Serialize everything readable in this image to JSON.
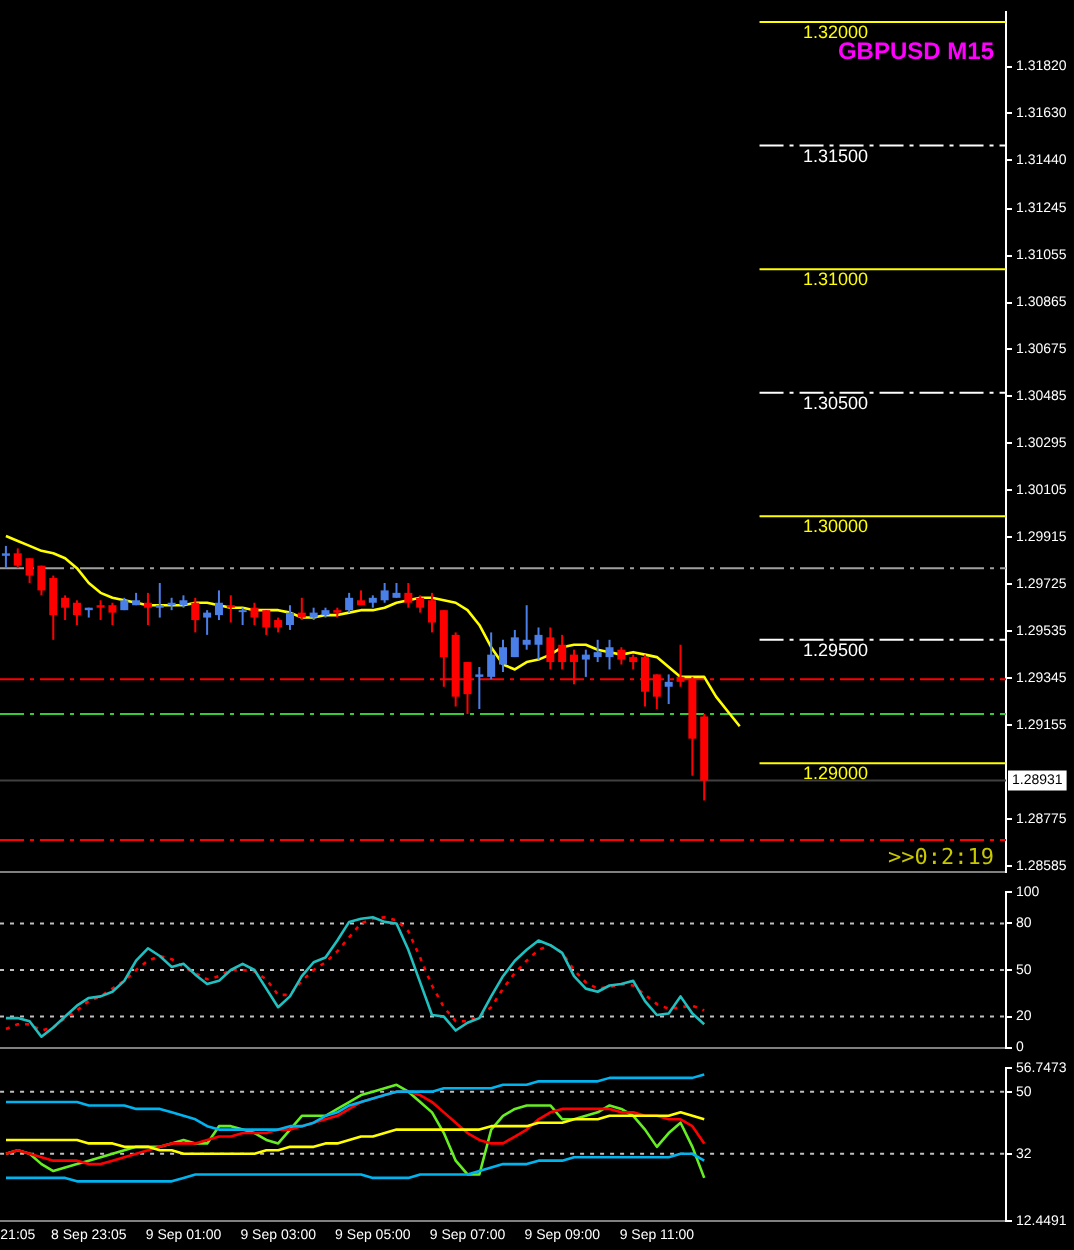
{
  "chart_data": [
    {
      "type": "candlestick",
      "title": "GBPUSD M15",
      "tick_labels": "y",
      "categories": [
        null,
        null,
        null,
        null,
        null,
        null,
        null,
        null,
        null,
        null,
        null,
        null,
        null,
        null,
        null,
        null,
        null,
        null,
        null,
        null,
        null,
        null,
        null,
        null,
        null,
        null,
        null,
        null,
        null,
        null,
        null,
        null,
        null,
        null,
        null,
        null,
        null,
        null,
        null,
        null,
        null,
        null,
        null,
        null,
        null,
        null,
        null,
        null,
        null,
        null,
        null,
        null,
        null,
        null,
        null,
        null,
        null,
        null,
        null,
        null,
        null,
        null,
        null,
        null,
        null,
        null,
        null,
        null,
        null,
        null,
        null,
        null,
        null,
        null,
        null,
        null,
        null,
        null,
        null,
        null,
        null,
        null,
        null,
        null,
        null
      ],
      "ohlc": [
        [
          1.2984,
          1.2988,
          1.2979,
          1.2985
        ],
        [
          1.2985,
          1.2987,
          1.2979,
          1.298
        ],
        [
          1.2983,
          1.2983,
          1.2973,
          1.2976
        ],
        [
          1.298,
          1.298,
          1.2968,
          1.297
        ],
        [
          1.2975,
          1.2976,
          1.295,
          1.296
        ],
        [
          1.2967,
          1.2968,
          1.2958,
          1.2963
        ],
        [
          1.2965,
          1.2966,
          1.2956,
          1.296
        ],
        [
          1.2962,
          1.2963,
          1.2959,
          1.2963
        ],
        [
          1.2964,
          1.2966,
          1.2958,
          1.2963
        ],
        [
          1.2964,
          1.2965,
          1.2956,
          1.2961
        ],
        [
          1.2962,
          1.2967,
          1.2962,
          1.2966
        ],
        [
          1.2964,
          1.2969,
          1.2964,
          1.2966
        ],
        [
          1.2965,
          1.2969,
          1.2956,
          1.2963
        ],
        [
          1.2963,
          1.2973,
          1.2959,
          1.2964
        ],
        [
          1.2964,
          1.2967,
          1.2962,
          1.2965
        ],
        [
          1.2964,
          1.2968,
          1.2963,
          1.2966
        ],
        [
          1.2965,
          1.2967,
          1.2953,
          1.2958
        ],
        [
          1.2959,
          1.2962,
          1.2952,
          1.2961
        ],
        [
          1.296,
          1.297,
          1.2958,
          1.2965
        ],
        [
          1.2964,
          1.2968,
          1.2957,
          1.2963
        ],
        [
          1.2962,
          1.2963,
          1.2956,
          1.2962
        ],
        [
          1.2963,
          1.2965,
          1.2956,
          1.2959
        ],
        [
          1.2962,
          1.2962,
          1.2952,
          1.2955
        ],
        [
          1.2958,
          1.2959,
          1.2953,
          1.2955
        ],
        [
          1.2956,
          1.2964,
          1.2954,
          1.2961
        ],
        [
          1.2961,
          1.2967,
          1.2958,
          1.2959
        ],
        [
          1.2959,
          1.2963,
          1.2958,
          1.2961
        ],
        [
          1.296,
          1.2963,
          1.2959,
          1.2962
        ],
        [
          1.2962,
          1.2963,
          1.2959,
          1.2961
        ],
        [
          1.2962,
          1.2969,
          1.2961,
          1.2967
        ],
        [
          1.2966,
          1.297,
          1.2964,
          1.2964
        ],
        [
          1.2965,
          1.2968,
          1.2963,
          1.2967
        ],
        [
          1.2966,
          1.2973,
          1.2965,
          1.297
        ],
        [
          1.2967,
          1.2973,
          1.2967,
          1.2969
        ],
        [
          1.2969,
          1.2973,
          1.2963,
          1.2965
        ],
        [
          1.2967,
          1.2968,
          1.2961,
          1.2963
        ],
        [
          1.2966,
          1.2969,
          1.2953,
          1.2957
        ],
        [
          1.2962,
          1.2962,
          1.2931,
          1.2943
        ],
        [
          1.2952,
          1.2953,
          1.2923,
          1.2927
        ],
        [
          1.2941,
          1.2941,
          1.292,
          1.2928
        ],
        [
          1.2935,
          1.2939,
          1.2922,
          1.2936
        ],
        [
          1.2935,
          1.2953,
          1.2934,
          1.2944
        ],
        [
          1.294,
          1.295,
          1.2937,
          1.2947
        ],
        [
          1.2943,
          1.2954,
          1.2943,
          1.2951
        ],
        [
          1.2948,
          1.2964,
          1.2946,
          1.295
        ],
        [
          1.2948,
          1.2955,
          1.2942,
          1.2952
        ],
        [
          1.2951,
          1.2955,
          1.2938,
          1.2941
        ],
        [
          1.2948,
          1.2952,
          1.2938,
          1.2941
        ],
        [
          1.2944,
          1.2946,
          1.2932,
          1.2941
        ],
        [
          1.2942,
          1.2946,
          1.2935,
          1.2944
        ],
        [
          1.2943,
          1.295,
          1.2941,
          1.2945
        ],
        [
          1.2943,
          1.295,
          1.2938,
          1.2947
        ],
        [
          1.2946,
          1.2947,
          1.294,
          1.2942
        ],
        [
          1.2943,
          1.2944,
          1.2938,
          1.2941
        ],
        [
          1.2943,
          1.2944,
          1.2923,
          1.2929
        ],
        [
          1.2936,
          1.2936,
          1.2922,
          1.2927
        ],
        [
          1.2931,
          1.2936,
          1.2924,
          1.2933
        ],
        [
          1.2935,
          1.2948,
          1.2931,
          1.2933
        ],
        [
          1.2934,
          1.2935,
          1.2895,
          1.291
        ],
        [
          1.2919,
          1.292,
          1.2885,
          1.2893
        ],
        null,
        null,
        null,
        null,
        null,
        null,
        null,
        null,
        null,
        null,
        null,
        null,
        null,
        null,
        null,
        null,
        null,
        null,
        null,
        null,
        null,
        null,
        null,
        null,
        null
      ],
      "colors": [
        "#4a7fe8",
        "#ff0000",
        "#ff0000",
        "#ff0000",
        "#ff0000",
        "#ff0000",
        "#ff0000",
        "#4a7fe8",
        "#ff0000",
        "#ff0000",
        "#4a7fe8",
        "#4a7fe8",
        "#ff0000",
        "#4a7fe8",
        "#4a7fe8",
        "#4a7fe8",
        "#ff0000",
        "#4a7fe8",
        "#4a7fe8",
        "#ff0000",
        "#4a7fe8",
        "#ff0000",
        "#ff0000",
        "#ff0000",
        "#4a7fe8",
        "#ff0000",
        "#4a7fe8",
        "#4a7fe8",
        "#ff0000",
        "#4a7fe8",
        "#ff0000",
        "#4a7fe8",
        "#4a7fe8",
        "#4a7fe8",
        "#ff0000",
        "#ff0000",
        "#ff0000",
        "#ff0000",
        "#ff0000",
        "#ff0000",
        "#4a7fe8",
        "#4a7fe8",
        "#4a7fe8",
        "#4a7fe8",
        "#4a7fe8",
        "#4a7fe8",
        "#ff0000",
        "#ff0000",
        "#ff0000",
        "#4a7fe8",
        "#4a7fe8",
        "#4a7fe8",
        "#ff0000",
        "#ff0000",
        "#ff0000",
        "#ff0000",
        "#4a7fe8",
        "#ff0000",
        "#ff0000",
        "#ff0000",
        null,
        null,
        null,
        null,
        null,
        null,
        null,
        null,
        null,
        null,
        null,
        null,
        null,
        null,
        null,
        null,
        null,
        null,
        null,
        null,
        null,
        null,
        null,
        null,
        null
      ],
      "series": [
        {
          "type": "line",
          "color": "#ffff00",
          "values": [
            1.2992,
            1.299,
            1.2988,
            1.2986,
            1.2985,
            1.2983,
            1.2979,
            1.2973,
            1.2969,
            1.2967,
            1.2966,
            1.2965,
            1.2964,
            1.2964,
            1.2964,
            1.2964,
            1.2965,
            1.2965,
            1.2964,
            1.2963,
            1.2963,
            1.2962,
            1.2962,
            1.2962,
            1.2961,
            1.2959,
            1.2959,
            1.296,
            1.296,
            1.2961,
            1.2962,
            1.2962,
            1.2963,
            1.2965,
            1.2966,
            1.2967,
            1.2967,
            1.2966,
            1.2965,
            1.2962,
            1.2956,
            1.2947,
            1.294,
            1.2938,
            1.2941,
            1.2942,
            1.2944,
            1.2947,
            1.2948,
            1.2948,
            1.2946,
            1.2945,
            1.2944,
            1.2945,
            1.2944,
            1.2943,
            1.2939,
            1.2935,
            1.2935,
            1.2935,
            1.2927,
            1.2921,
            1.2915,
            null,
            null,
            null,
            null,
            null,
            null,
            null,
            null,
            null,
            null,
            null,
            null,
            null,
            null,
            null,
            null,
            null,
            null,
            null,
            null,
            null,
            null
          ]
        }
      ],
      "ylim": [
        1.28562,
        1.32039
      ],
      "yticks": [
        {
          "value": 1.3182,
          "label": "1.31820"
        },
        {
          "value": 1.3163,
          "label": "1.31630"
        },
        {
          "value": 1.3144,
          "label": "1.31440"
        },
        {
          "value": 1.31245,
          "label": "1.31245"
        },
        {
          "value": 1.31055,
          "label": "1.31055"
        },
        {
          "value": 1.30865,
          "label": "1.30865"
        },
        {
          "value": 1.30675,
          "label": "1.30675"
        },
        {
          "value": 1.30485,
          "label": "1.30485"
        },
        {
          "value": 1.30295,
          "label": "1.30295"
        },
        {
          "value": 1.30105,
          "label": "1.30105"
        },
        {
          "value": 1.29915,
          "label": "1.29915"
        },
        {
          "value": 1.29725,
          "label": "1.29725"
        },
        {
          "value": 1.29535,
          "label": "1.29535"
        },
        {
          "value": 1.29345,
          "label": "1.29345"
        },
        {
          "value": 1.29155,
          "label": "1.29155"
        },
        {
          "value": 1.28775,
          "label": "1.28775"
        },
        {
          "value": 1.28585,
          "label": "1.28585"
        }
      ],
      "ref_lines": [
        {
          "axis": "y",
          "value": 1.32,
          "label": "1.32000",
          "color": "#ffff00",
          "line_style": "solid"
        },
        {
          "axis": "y",
          "value": 1.315,
          "label": "1.31500",
          "color": "#ffffff",
          "line_style": "dashed"
        },
        {
          "axis": "y",
          "value": 1.31,
          "label": "1.31000",
          "color": "#ffff00",
          "line_style": "solid"
        },
        {
          "axis": "y",
          "value": 1.305,
          "label": "1.30500",
          "color": "#ffffff",
          "line_style": "dashed"
        },
        {
          "axis": "y",
          "value": 1.3,
          "label": "1.30000",
          "color": "#ffff00",
          "line_style": "solid"
        },
        {
          "axis": "y",
          "value": 1.295,
          "label": "1.29500",
          "color": "#ffffff",
          "line_style": "dashed"
        },
        {
          "axis": "y",
          "value": 1.29,
          "label": "1.29000",
          "color": "#ffff00",
          "line_style": "solid"
        },
        {
          "axis": "y",
          "value": 1.2979,
          "color": "#a0a0a0",
          "line_style": "dashed"
        },
        {
          "axis": "y",
          "value": 1.2934,
          "color": "#ff0000",
          "line_style": "dashed"
        },
        {
          "axis": "y",
          "value": 1.292,
          "color": "#33cc33",
          "line_style": "dashed"
        },
        {
          "axis": "y",
          "value": 1.2869,
          "color": "#ff0000",
          "line_style": "dashed"
        },
        {
          "axis": "y",
          "value": 1.28931,
          "color": "#404040",
          "line_style": "solid"
        }
      ],
      "annotations": [
        ">>0:2:19",
        "1.28931"
      ]
    },
    {
      "type": "line",
      "tick_labels": "y",
      "categories": [
        null,
        null,
        null,
        null,
        null,
        null,
        null,
        null,
        null,
        null,
        null,
        null,
        null,
        null,
        null,
        null,
        null,
        null,
        null,
        null,
        null,
        null,
        null,
        null,
        null,
        null,
        null,
        null,
        null,
        null,
        null,
        null,
        null,
        null,
        null,
        null,
        null,
        null,
        null,
        null,
        null,
        null,
        null,
        null,
        null,
        null,
        null,
        null,
        null,
        null,
        null,
        null,
        null,
        null,
        null,
        null,
        null,
        null,
        null,
        null,
        null,
        null,
        null,
        null,
        null,
        null,
        null,
        null,
        null,
        null,
        null,
        null,
        null,
        null,
        null,
        null,
        null,
        null,
        null,
        null,
        null,
        null,
        null,
        null,
        null
      ],
      "series": [
        {
          "color": "#20c0c0",
          "line_style": "solid",
          "values": [
            19,
            19,
            17,
            7,
            13,
            20,
            27,
            32,
            33,
            36,
            43,
            56,
            64,
            59,
            52,
            54,
            47,
            41,
            43,
            50,
            54,
            50,
            38,
            26,
            33,
            46,
            55,
            58,
            69,
            81,
            83,
            84,
            81,
            80,
            63,
            42,
            21,
            20,
            11,
            16,
            19,
            33,
            46,
            56,
            63,
            69,
            66,
            61,
            46,
            38,
            36,
            40,
            41,
            43,
            30,
            21,
            22,
            33,
            22,
            15,
            null,
            null,
            null,
            null,
            null,
            null,
            null,
            null,
            null,
            null,
            null,
            null,
            null,
            null,
            null,
            null,
            null,
            null,
            null,
            null,
            null,
            null,
            null,
            null,
            null
          ]
        },
        {
          "color": "#ff0000",
          "line_style": "dotted",
          "values": [
            12,
            15,
            15,
            11,
            13,
            19,
            24,
            30,
            33,
            38,
            43,
            50,
            56,
            59,
            57,
            52,
            48,
            44,
            46,
            50,
            50,
            49,
            44,
            34,
            34,
            43,
            50,
            55,
            62,
            71,
            80,
            83,
            84,
            82,
            75,
            58,
            40,
            26,
            17,
            17,
            20,
            26,
            38,
            48,
            56,
            63,
            66,
            61,
            50,
            42,
            38,
            39,
            41,
            40,
            34,
            28,
            25,
            26,
            27,
            24,
            null,
            null,
            null,
            null,
            null,
            null,
            null,
            null,
            null,
            null,
            null,
            null,
            null,
            null,
            null,
            null,
            null,
            null,
            null,
            null,
            null,
            null,
            null,
            null,
            null
          ]
        }
      ],
      "ylim": [
        0,
        100
      ],
      "yticks": [
        0,
        20,
        50,
        80,
        100
      ],
      "ref_lines": [
        {
          "axis": "y",
          "value": 20,
          "color": "#c0c0c0",
          "line_style": "dotted"
        },
        {
          "axis": "y",
          "value": 50,
          "color": "#c0c0c0",
          "line_style": "dotted"
        },
        {
          "axis": "y",
          "value": 80,
          "color": "#c0c0c0",
          "line_style": "dotted"
        }
      ]
    },
    {
      "type": "line",
      "categories": [
        null,
        "21:05",
        null,
        null,
        null,
        null,
        null,
        "8 Sep 23:05",
        null,
        null,
        null,
        null,
        null,
        null,
        null,
        "9 Sep 01:00",
        null,
        null,
        null,
        null,
        null,
        null,
        null,
        "9 Sep 03:00",
        null,
        null,
        null,
        null,
        null,
        null,
        null,
        "9 Sep 05:00",
        null,
        null,
        null,
        null,
        null,
        null,
        null,
        "9 Sep 07:00",
        null,
        null,
        null,
        null,
        null,
        null,
        null,
        "9 Sep 09:00",
        null,
        null,
        null,
        null,
        null,
        null,
        null,
        "9 Sep 11:00",
        null,
        null,
        null,
        null,
        null,
        null,
        null,
        null,
        null,
        null,
        null,
        null,
        null,
        null,
        null,
        null,
        null,
        null,
        null,
        null,
        null,
        null,
        null,
        null,
        null,
        null,
        null,
        null,
        null
      ],
      "series": [
        {
          "color": "#00b4f0",
          "values": [
            47,
            47,
            47,
            47,
            47,
            47,
            47,
            46,
            46,
            46,
            46,
            45,
            45,
            45,
            44,
            43,
            42,
            40,
            39,
            39,
            39,
            39,
            39,
            39,
            40,
            40,
            41,
            43,
            44,
            46,
            47,
            48,
            49,
            50,
            50,
            50,
            50,
            51,
            51,
            51,
            51,
            51,
            52,
            52,
            52,
            53,
            53,
            53,
            53,
            53,
            53,
            54,
            54,
            54,
            54,
            54,
            54,
            54,
            54,
            55,
            null,
            null,
            null,
            null,
            null,
            null,
            null,
            null,
            null,
            null,
            null,
            null,
            null,
            null,
            null,
            null,
            null,
            null,
            null,
            null,
            null,
            null,
            null,
            null,
            null
          ]
        },
        {
          "color": "#00b4f0",
          "values": [
            25,
            25,
            25,
            25,
            25,
            25,
            24,
            24,
            24,
            24,
            24,
            24,
            24,
            24,
            24,
            25,
            26,
            26,
            26,
            26,
            26,
            26,
            26,
            26,
            26,
            26,
            26,
            26,
            26,
            26,
            26,
            25,
            25,
            25,
            25,
            26,
            26,
            26,
            26,
            26,
            27,
            28,
            29,
            29,
            29,
            30,
            30,
            30,
            31,
            31,
            31,
            31,
            31,
            31,
            31,
            31,
            31,
            32,
            32,
            30,
            null,
            null,
            null,
            null,
            null,
            null,
            null,
            null,
            null,
            null,
            null,
            null,
            null,
            null,
            null,
            null,
            null,
            null,
            null,
            null,
            null,
            null,
            null,
            null,
            null
          ]
        },
        {
          "color": "#ffff00",
          "values": [
            36,
            36,
            36,
            36,
            36,
            36,
            36,
            35,
            35,
            35,
            34,
            34,
            34,
            33,
            33,
            32,
            32,
            32,
            32,
            32,
            32,
            32,
            33,
            33,
            34,
            34,
            34,
            35,
            35,
            36,
            37,
            37,
            38,
            39,
            39,
            39,
            39,
            39,
            39,
            39,
            39,
            40,
            40,
            40,
            40,
            41,
            41,
            41,
            42,
            42,
            42,
            43,
            43,
            43,
            43,
            43,
            43,
            44,
            43,
            42,
            null,
            null,
            null,
            null,
            null,
            null,
            null,
            null,
            null,
            null,
            null,
            null,
            null,
            null,
            null,
            null,
            null,
            null,
            null,
            null,
            null,
            null,
            null,
            null,
            null
          ]
        },
        {
          "color": "#ff0000",
          "values": [
            32,
            33,
            32,
            31,
            30,
            30,
            30,
            29,
            29,
            30,
            31,
            32,
            33,
            34,
            35,
            35,
            35,
            36,
            37,
            37,
            38,
            38,
            38,
            39,
            39,
            40,
            41,
            42,
            43,
            45,
            47,
            48,
            49,
            50,
            50,
            49,
            47,
            44,
            41,
            38,
            36,
            35,
            35,
            37,
            39,
            42,
            44,
            45,
            45,
            45,
            45,
            45,
            44,
            44,
            43,
            43,
            42,
            42,
            40,
            35,
            null,
            null,
            null,
            null,
            null,
            null,
            null,
            null,
            null,
            null,
            null,
            null,
            null,
            null,
            null,
            null,
            null,
            null,
            null,
            null,
            null,
            null,
            null,
            null,
            null
          ]
        },
        {
          "color": "#66ee22",
          "values": [
            32,
            33,
            32,
            29,
            27,
            28,
            29,
            30,
            31,
            32,
            33,
            34,
            34,
            34,
            35,
            36,
            35,
            35,
            40,
            40,
            39,
            38,
            36,
            35,
            39,
            43,
            43,
            43,
            45,
            47,
            49,
            50,
            51,
            52,
            50,
            47,
            44,
            38,
            30,
            26,
            26,
            39,
            43,
            45,
            46,
            46,
            46,
            42,
            42,
            43,
            44,
            46,
            45,
            43,
            39,
            34,
            38,
            41,
            34,
            25,
            null,
            null,
            null,
            null,
            null,
            null,
            null,
            null,
            null,
            null,
            null,
            null,
            null,
            null,
            null,
            null,
            null,
            null,
            null,
            null,
            null,
            null,
            null,
            null,
            null
          ]
        }
      ],
      "ylim": [
        12.4491,
        56.7473
      ],
      "yticks": [
        12.4491,
        32,
        50,
        56.7473
      ],
      "ref_lines": [
        {
          "axis": "y",
          "value": 32,
          "color": "#c0c0c0",
          "line_style": "dotted"
        },
        {
          "axis": "y",
          "value": 50,
          "color": "#c0c0c0",
          "line_style": "dotted"
        }
      ]
    }
  ]
}
